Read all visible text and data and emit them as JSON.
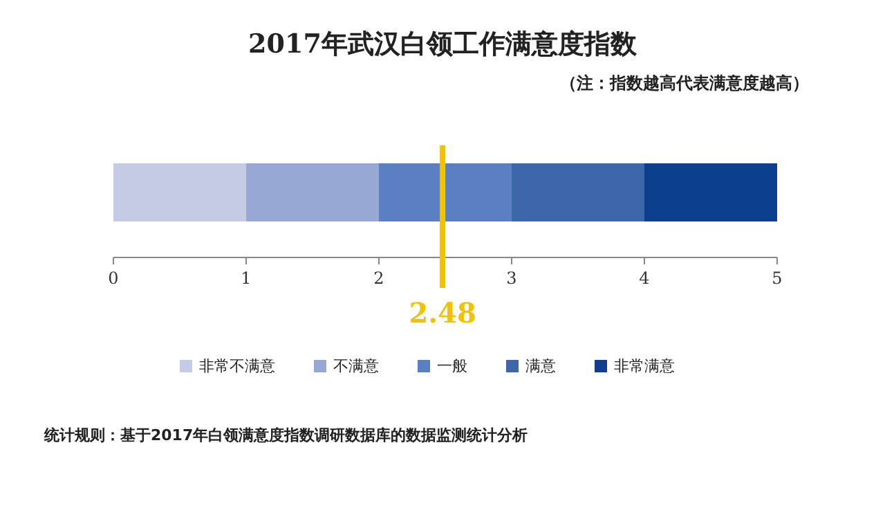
{
  "chart_data": {
    "type": "bar",
    "orientation": "horizontal",
    "stacked": true,
    "title": "2017年武汉白领工作满意度指数",
    "subtitle": "（注：指数越高代表满意度越高）",
    "categories": [
      null
    ],
    "series": [
      {
        "name": "非常不满意",
        "color": "#c3cce4",
        "values": [
          1
        ]
      },
      {
        "name": "不满意",
        "color": "#97a8d4",
        "values": [
          1
        ]
      },
      {
        "name": "一般",
        "color": "#5a7fc2",
        "values": [
          1
        ]
      },
      {
        "name": "满意",
        "color": "#3d66ab",
        "values": [
          1
        ]
      },
      {
        "name": "非常满意",
        "color": "#0e3f8f",
        "values": [
          1
        ]
      }
    ],
    "xlim": [
      0,
      5
    ],
    "xticks": [
      0,
      1,
      2,
      3,
      4,
      5
    ],
    "ref_lines": [
      {
        "axis": "x",
        "value": 2.48,
        "label": "2.48",
        "color": "#f2c200"
      }
    ],
    "legend": "bottom",
    "annotations": [
      "统计规则：基于2017年白领满意度指数调研数据库的数据监测统计分析"
    ]
  }
}
